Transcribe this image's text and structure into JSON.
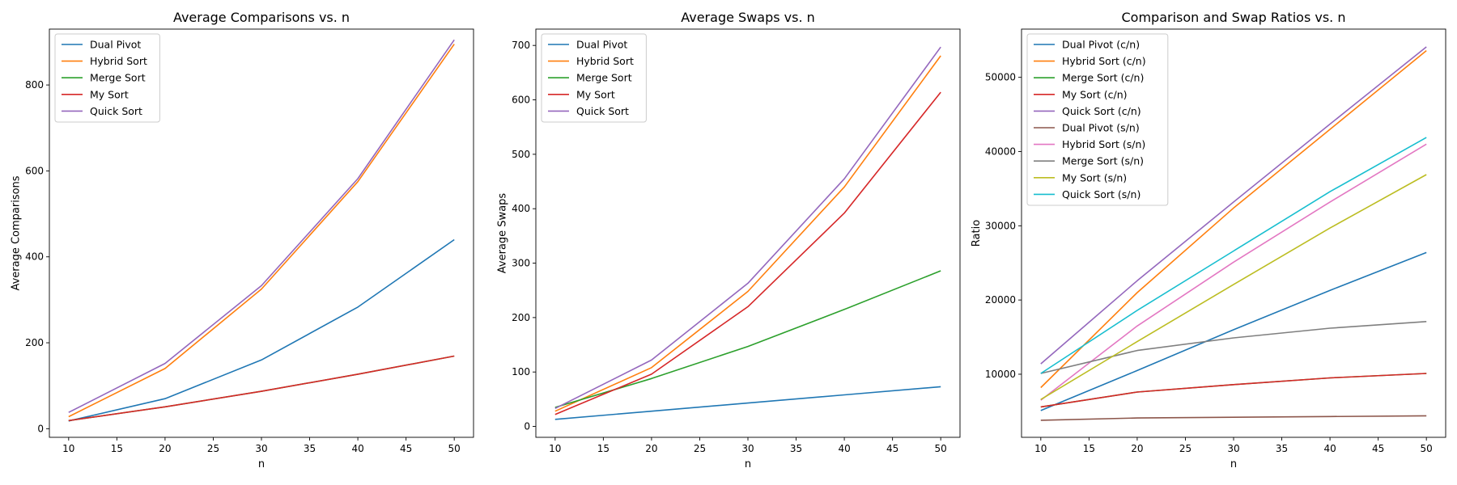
{
  "chart_data": [
    {
      "type": "line",
      "title": "Average Comparisons vs. n",
      "xlabel": "n",
      "ylabel": "Average Comparisons",
      "x": [
        10,
        20,
        30,
        40,
        50
      ],
      "xlim": [
        8,
        52
      ],
      "ylim": [
        -20,
        930
      ],
      "xticks": [
        10,
        15,
        20,
        25,
        30,
        35,
        40,
        45,
        50
      ],
      "yticks": [
        0,
        200,
        400,
        600,
        800
      ],
      "legend": "top-left",
      "grid": false,
      "series": [
        {
          "name": "Dual Pivot",
          "color": "#1f77b4",
          "values": [
            18,
            70,
            160,
            283,
            440
          ]
        },
        {
          "name": "Hybrid Sort",
          "color": "#ff7f0e",
          "values": [
            28,
            140,
            325,
            575,
            895
          ]
        },
        {
          "name": "Merge Sort",
          "color": "#2ca02c",
          "values": [
            19,
            51,
            87,
            127,
            169
          ]
        },
        {
          "name": "My Sort",
          "color": "#d62728",
          "values": [
            19,
            51,
            87,
            127,
            169
          ]
        },
        {
          "name": "Quick Sort",
          "color": "#9467bd",
          "values": [
            38,
            152,
            333,
            582,
            905
          ]
        }
      ]
    },
    {
      "type": "line",
      "title": "Average Swaps vs. n",
      "xlabel": "n",
      "ylabel": "Average Swaps",
      "x": [
        10,
        20,
        30,
        40,
        50
      ],
      "xlim": [
        8,
        52
      ],
      "ylim": [
        -20,
        730
      ],
      "xticks": [
        10,
        15,
        20,
        25,
        30,
        35,
        40,
        45,
        50
      ],
      "yticks": [
        0,
        100,
        200,
        300,
        400,
        500,
        600,
        700
      ],
      "legend": "top-left",
      "grid": false,
      "series": [
        {
          "name": "Dual Pivot",
          "color": "#1f77b4",
          "values": [
            13,
            28,
            43,
            58,
            73
          ]
        },
        {
          "name": "Hybrid Sort",
          "color": "#ff7f0e",
          "values": [
            28,
            108,
            248,
            440,
            681
          ]
        },
        {
          "name": "Merge Sort",
          "color": "#2ca02c",
          "values": [
            35,
            88,
            147,
            215,
            286
          ]
        },
        {
          "name": "My Sort",
          "color": "#d62728",
          "values": [
            22,
            96,
            220,
            392,
            614
          ]
        },
        {
          "name": "Quick Sort",
          "color": "#9467bd",
          "values": [
            33,
            122,
            263,
            455,
            697
          ]
        }
      ]
    },
    {
      "type": "line",
      "title": "Comparison and Swap Ratios vs. n",
      "xlabel": "n",
      "ylabel": "Ratio",
      "x": [
        10,
        20,
        30,
        40,
        50
      ],
      "xlim": [
        8,
        52
      ],
      "ylim": [
        1500,
        56500
      ],
      "xticks": [
        10,
        15,
        20,
        25,
        30,
        35,
        40,
        45,
        50
      ],
      "yticks": [
        10000,
        20000,
        30000,
        40000,
        50000
      ],
      "legend": "top-left",
      "grid": false,
      "series": [
        {
          "name": "Dual Pivot (c/n)",
          "color": "#1f77b4",
          "values": [
            5100,
            10500,
            16000,
            21300,
            26400
          ]
        },
        {
          "name": "Hybrid Sort (c/n)",
          "color": "#ff7f0e",
          "values": [
            8200,
            21000,
            32400,
            43000,
            53600
          ]
        },
        {
          "name": "Merge Sort (c/n)",
          "color": "#2ca02c",
          "values": [
            5600,
            7600,
            8600,
            9500,
            10100
          ]
        },
        {
          "name": "My Sort (c/n)",
          "color": "#d62728",
          "values": [
            5600,
            7600,
            8600,
            9500,
            10100
          ]
        },
        {
          "name": "Quick Sort (c/n)",
          "color": "#9467bd",
          "values": [
            11400,
            22600,
            33200,
            43700,
            54100
          ]
        },
        {
          "name": "Dual Pivot (s/n)",
          "color": "#8c564b",
          "values": [
            3800,
            4100,
            4200,
            4300,
            4400
          ]
        },
        {
          "name": "Hybrid Sort (s/n)",
          "color": "#e377c2",
          "values": [
            6500,
            16500,
            25100,
            33200,
            41000
          ]
        },
        {
          "name": "Merge Sort (s/n)",
          "color": "#7f7f7f",
          "values": [
            10100,
            13200,
            14900,
            16200,
            17100
          ]
        },
        {
          "name": "My Sort (s/n)",
          "color": "#bcbd22",
          "values": [
            6600,
            14400,
            22100,
            29700,
            36900
          ]
        },
        {
          "name": "Quick Sort (s/n)",
          "color": "#17becf",
          "values": [
            10100,
            18600,
            26600,
            34600,
            41900
          ]
        }
      ]
    }
  ]
}
